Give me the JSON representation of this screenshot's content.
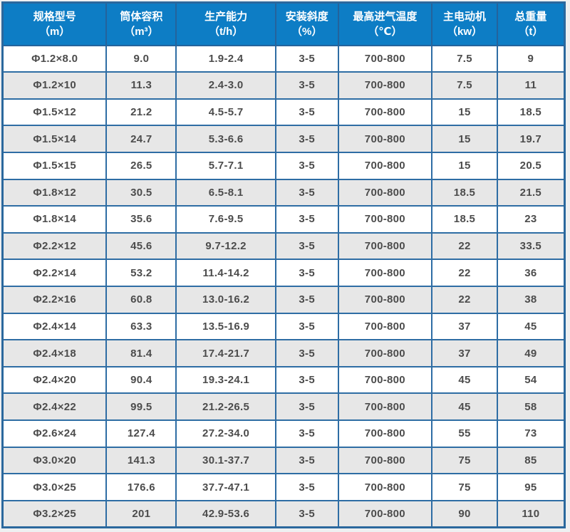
{
  "colors": {
    "header_bg": "#0d7dc5",
    "header_text": "#ffffff",
    "grid_border": "#2e6da4",
    "row_alt_bg": "#e7e7e7",
    "row_bg": "#ffffff",
    "cell_text": "#4c4c4c"
  },
  "table": {
    "columns": [
      {
        "title": "规格型号",
        "unit": "（m）"
      },
      {
        "title": "筒体容积",
        "unit": "（m³）"
      },
      {
        "title": "生产能力",
        "unit": "（t/h）"
      },
      {
        "title": "安装斜度",
        "unit": "（%）"
      },
      {
        "title": "最高进气温度",
        "unit": "（℃）"
      },
      {
        "title": "主电动机",
        "unit": "（kw）"
      },
      {
        "title": "总重量",
        "unit": "（t）"
      }
    ],
    "rows": [
      [
        "Φ1.2×8.0",
        "9.0",
        "1.9-2.4",
        "3-5",
        "700-800",
        "7.5",
        "9"
      ],
      [
        "Φ1.2×10",
        "11.3",
        "2.4-3.0",
        "3-5",
        "700-800",
        "7.5",
        "11"
      ],
      [
        "Φ1.5×12",
        "21.2",
        "4.5-5.7",
        "3-5",
        "700-800",
        "15",
        "18.5"
      ],
      [
        "Φ1.5×14",
        "24.7",
        "5.3-6.6",
        "3-5",
        "700-800",
        "15",
        "19.7"
      ],
      [
        "Φ1.5×15",
        "26.5",
        "5.7-7.1",
        "3-5",
        "700-800",
        "15",
        "20.5"
      ],
      [
        "Φ1.8×12",
        "30.5",
        "6.5-8.1",
        "3-5",
        "700-800",
        "18.5",
        "21.5"
      ],
      [
        "Φ1.8×14",
        "35.6",
        "7.6-9.5",
        "3-5",
        "700-800",
        "18.5",
        "23"
      ],
      [
        "Φ2.2×12",
        "45.6",
        "9.7-12.2",
        "3-5",
        "700-800",
        "22",
        "33.5"
      ],
      [
        "Φ2.2×14",
        "53.2",
        "11.4-14.2",
        "3-5",
        "700-800",
        "22",
        "36"
      ],
      [
        "Φ2.2×16",
        "60.8",
        "13.0-16.2",
        "3-5",
        "700-800",
        "22",
        "38"
      ],
      [
        "Φ2.4×14",
        "63.3",
        "13.5-16.9",
        "3-5",
        "700-800",
        "37",
        "45"
      ],
      [
        "Φ2.4×18",
        "81.4",
        "17.4-21.7",
        "3-5",
        "700-800",
        "37",
        "49"
      ],
      [
        "Φ2.4×20",
        "90.4",
        "19.3-24.1",
        "3-5",
        "700-800",
        "45",
        "54"
      ],
      [
        "Φ2.4×22",
        "99.5",
        "21.2-26.5",
        "3-5",
        "700-800",
        "45",
        "58"
      ],
      [
        "Φ2.6×24",
        "127.4",
        "27.2-34.0",
        "3-5",
        "700-800",
        "55",
        "73"
      ],
      [
        "Φ3.0×20",
        "141.3",
        "30.1-37.7",
        "3-5",
        "700-800",
        "75",
        "85"
      ],
      [
        "Φ3.0×25",
        "176.6",
        "37.7-47.1",
        "3-5",
        "700-800",
        "75",
        "95"
      ],
      [
        "Φ3.2×25",
        "201",
        "42.9-53.6",
        "3-5",
        "700-800",
        "90",
        "110"
      ]
    ]
  }
}
